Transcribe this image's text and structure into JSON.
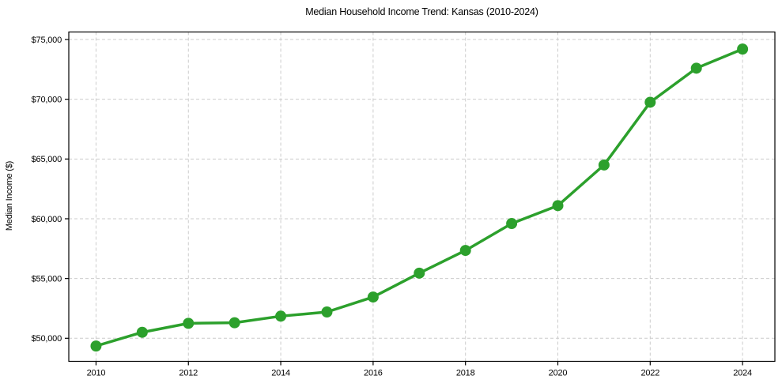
{
  "chart_data": {
    "type": "line",
    "title": "Median Household Income Trend: Kansas (2010-2024)",
    "xlabel": "",
    "ylabel": "Median Income ($)",
    "x": [
      2010,
      2011,
      2012,
      2013,
      2014,
      2015,
      2016,
      2017,
      2018,
      2019,
      2020,
      2021,
      2022,
      2023,
      2024
    ],
    "values": [
      49350,
      50500,
      51250,
      51300,
      51850,
      52200,
      53450,
      55450,
      57350,
      59600,
      61100,
      64500,
      69750,
      72600,
      74200
    ],
    "x_ticks": [
      2010,
      2012,
      2014,
      2016,
      2018,
      2020,
      2022,
      2024
    ],
    "y_ticks": [
      50000,
      55000,
      60000,
      65000,
      70000,
      75000
    ],
    "y_tick_prefix": "$",
    "xlim": [
      2009.41,
      2024.7
    ],
    "ylim": [
      48070,
      75630
    ],
    "grid": "dashed",
    "legend": "none",
    "marker": "circle",
    "colors": {
      "line": "#2ca02c",
      "marker": "#2ca02c",
      "grid": "#cccccc",
      "axis_border": "#000000",
      "text": "#000000",
      "background": "#ffffff"
    }
  }
}
